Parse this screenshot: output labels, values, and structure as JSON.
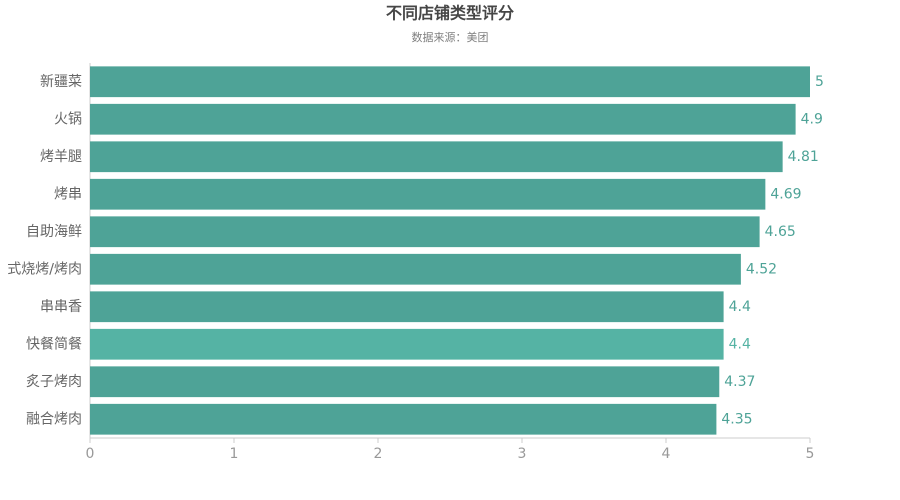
{
  "chart_data": {
    "type": "hbar",
    "title": "不同店铺类型评分",
    "subtitle": "数据来源：美团",
    "categories": [
      "新疆菜",
      "火锅",
      "烤羊腿",
      "烤串",
      "自助海鲜",
      "式烧烤/烤肉",
      "串串香",
      "快餐简餐",
      "炙子烤肉",
      "融合烤肉"
    ],
    "values": [
      5,
      4.9,
      4.81,
      4.69,
      4.65,
      4.52,
      4.4,
      4.4,
      4.37,
      4.35
    ],
    "colors": [
      "#4ea397",
      "#4ea397",
      "#4ea397",
      "#4ea397",
      "#4ea397",
      "#4ea397",
      "#4ea397",
      "#55b3a4",
      "#4ea397",
      "#4ea397"
    ],
    "xlim": [
      0,
      5
    ],
    "xticks": [
      0,
      1,
      2,
      3,
      4,
      5
    ]
  }
}
